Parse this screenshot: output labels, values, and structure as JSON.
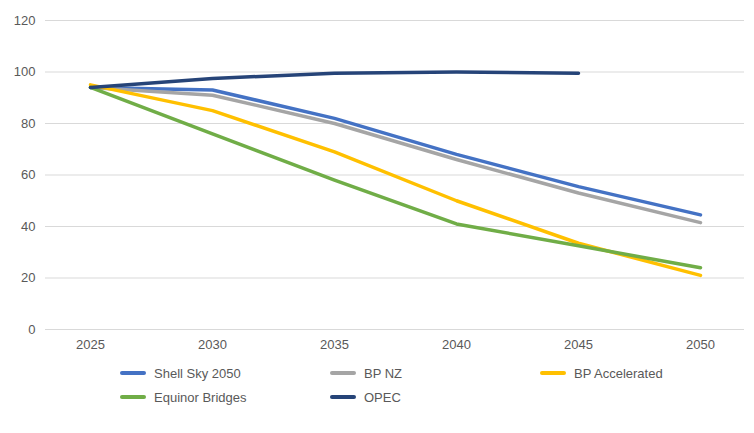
{
  "chart_data": {
    "type": "line",
    "categories": [
      "2025",
      "2030",
      "2035",
      "2040",
      "2045",
      "2050"
    ],
    "series": [
      {
        "name": "Shell Sky 2050",
        "color": "#4472c4",
        "values": [
          94,
          93,
          82,
          68,
          55.5,
          44.5
        ]
      },
      {
        "name": "BP NZ",
        "color": "#a5a5a5",
        "values": [
          94,
          91,
          80,
          66,
          53,
          41.5
        ]
      },
      {
        "name": "BP Accelerated",
        "color": "#ffc000",
        "values": [
          95,
          85,
          69,
          50,
          33.5,
          21
        ]
      },
      {
        "name": "Equinor Bridges",
        "color": "#70ad47",
        "values": [
          94,
          76,
          58,
          41,
          32.5,
          24
        ]
      },
      {
        "name": "OPEC",
        "color": "#264478",
        "values": [
          94,
          97.5,
          99.5,
          100,
          99.5,
          null
        ]
      }
    ],
    "ylim": [
      0,
      120
    ],
    "yticks": [
      0,
      20,
      40,
      60,
      80,
      100,
      120
    ],
    "grid": true,
    "legend": "bottom"
  }
}
